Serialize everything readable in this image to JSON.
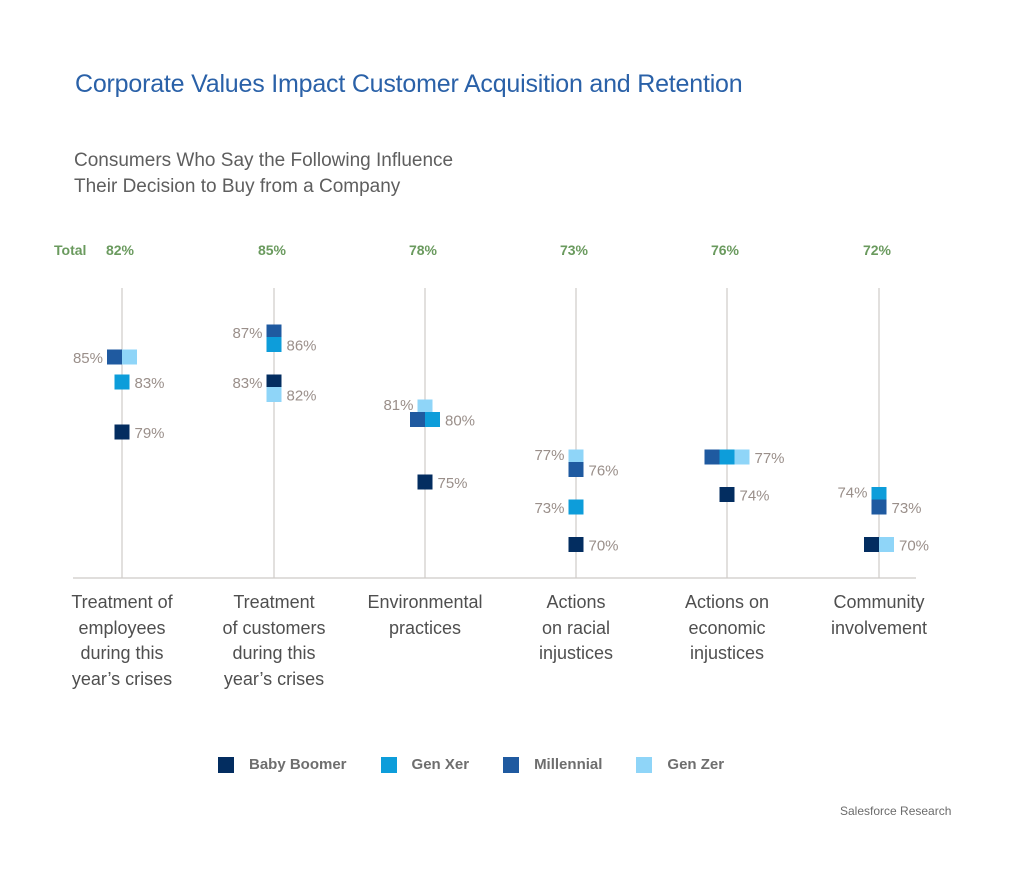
{
  "header": {
    "title": "Corporate Values Impact Customer Acquisition and Retention",
    "subtitle_line1": "Consumers Who Say the Following Influence",
    "subtitle_line2": "Their Decision to Buy from a Company"
  },
  "source": "Salesforce Research",
  "chart_data": {
    "type": "scatter",
    "title": "Consumers Who Say the Following Influence Their Decision to Buy from a Company",
    "xlabel": "",
    "ylabel": "",
    "ylim": [
      68,
      90
    ],
    "grid": false,
    "legend_position": "bottom",
    "total_label": "Total",
    "categories": [
      "Treatment of\nemployees\nduring this\nyear’s crises",
      "Treatment\nof customers\nduring this\nyear’s crises",
      "Environmental\npractices",
      "Actions\non racial\ninjustices",
      "Actions on\neconomic\ninjustices",
      "Community\ninvolvement"
    ],
    "totals": [
      "82%",
      "85%",
      "78%",
      "73%",
      "76%",
      "72%"
    ],
    "colors": {
      "Baby Boomer": "#032d60",
      "Gen Xer": "#0d9dda",
      "Millennial": "#1f5aa0",
      "Gen Zer": "#8fd5f8",
      "total": "#6a9a5e",
      "value_label": "#9a8f8a"
    },
    "series": [
      {
        "name": "Baby Boomer",
        "values": [
          79,
          83,
          75,
          70,
          74,
          70
        ]
      },
      {
        "name": "Gen Xer",
        "values": [
          83,
          86,
          80,
          73,
          77,
          74
        ]
      },
      {
        "name": "Millennial",
        "values": [
          85,
          87,
          80,
          76,
          77,
          73
        ]
      },
      {
        "name": "Gen Zer",
        "values": [
          85,
          82,
          81,
          77,
          77,
          70
        ]
      }
    ]
  }
}
